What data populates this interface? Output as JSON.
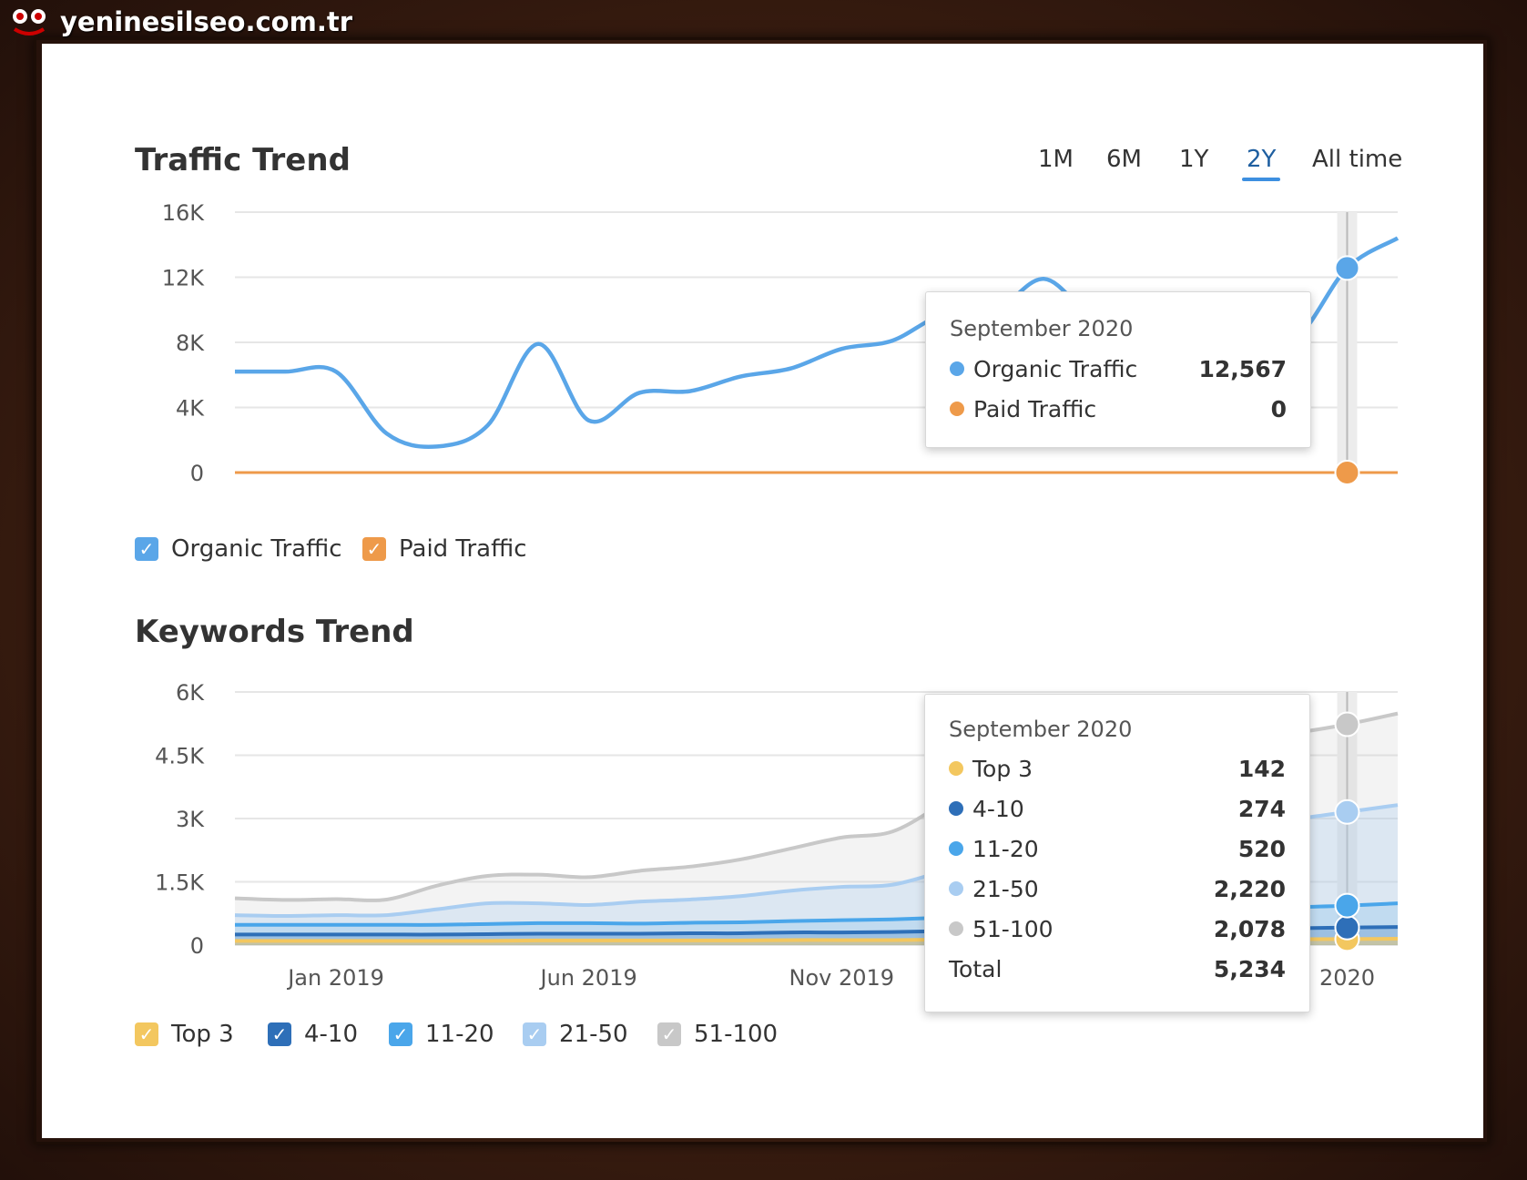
{
  "watermark": {
    "text": "yeninesilseo.com.tr"
  },
  "traffic": {
    "title": "Traffic Trend",
    "periods": [
      "1M",
      "6M",
      "1Y",
      "2Y",
      "All time"
    ],
    "active_period": "2Y",
    "tooltip": {
      "title": "September 2020",
      "rows": [
        {
          "label": "Organic Traffic",
          "value": "12,567",
          "color": "#5aa6e8"
        },
        {
          "label": "Paid Traffic",
          "value": "0",
          "color": "#ee9a4a"
        }
      ]
    },
    "legend": [
      {
        "label": "Organic Traffic",
        "color": "#5aa6e8",
        "checked": true
      },
      {
        "label": "Paid Traffic",
        "color": "#ee9a4a",
        "checked": true
      }
    ]
  },
  "keywords": {
    "title": "Keywords Trend",
    "tooltip": {
      "title": "September 2020",
      "rows": [
        {
          "label": "Top 3",
          "value": "142",
          "color": "#f3c75f"
        },
        {
          "label": "4-10",
          "value": "274",
          "color": "#2e6fb8"
        },
        {
          "label": "11-20",
          "value": "520",
          "color": "#4aa6ea"
        },
        {
          "label": "21-50",
          "value": "2,220",
          "color": "#a9cdf1"
        },
        {
          "label": "51-100",
          "value": "2,078",
          "color": "#c8c8c8"
        }
      ],
      "total_label": "Total",
      "total_value": "5,234"
    },
    "legend": [
      {
        "label": "Top 3",
        "color": "#f3c75f",
        "checked": true
      },
      {
        "label": "4-10",
        "color": "#2e6fb8",
        "checked": true
      },
      {
        "label": "11-20",
        "color": "#4aa6ea",
        "checked": true
      },
      {
        "label": "21-50",
        "color": "#a9cdf1",
        "checked": true
      },
      {
        "label": "51-100",
        "color": "#c8c8c8",
        "checked": true
      }
    ]
  },
  "chart_data": [
    {
      "type": "line",
      "title": "Traffic Trend",
      "ylim": [
        0,
        16000
      ],
      "y_ticks": [
        "16K",
        "12K",
        "8K",
        "4K",
        "0"
      ],
      "y_tick_values": [
        16000,
        12000,
        8000,
        4000,
        0
      ],
      "grid": true,
      "legend_position": "bottom-left",
      "highlight_index": 22,
      "series": [
        {
          "name": "Organic Traffic",
          "color": "#5aa6e8",
          "values": [
            6200,
            6200,
            6200,
            2400,
            1600,
            2900,
            7900,
            3200,
            4900,
            5000,
            5900,
            6400,
            7600,
            8100,
            9700,
            9800,
            11900,
            9500,
            9400,
            9000,
            8200,
            8300,
            12567,
            14400
          ]
        },
        {
          "name": "Paid Traffic",
          "color": "#ee9a4a",
          "values": [
            0,
            0,
            0,
            0,
            0,
            0,
            0,
            0,
            0,
            0,
            0,
            0,
            0,
            0,
            0,
            0,
            0,
            0,
            0,
            0,
            0,
            0,
            0,
            0
          ]
        }
      ]
    },
    {
      "type": "area",
      "title": "Keywords Trend",
      "ylim": [
        0,
        6000
      ],
      "y_ticks": [
        "6K",
        "4.5K",
        "3K",
        "1.5K",
        "0"
      ],
      "y_tick_values": [
        6000,
        4500,
        3000,
        1500,
        0
      ],
      "x_ticks": [
        "Jan 2019",
        "Jun 2019",
        "Nov 2019",
        "2020"
      ],
      "x_tick_indices": [
        2,
        7,
        12,
        22
      ],
      "grid": true,
      "legend_position": "bottom-left",
      "highlight_index": 22,
      "stacked_order": [
        "Top 3",
        "4-10",
        "11-20",
        "21-50",
        "51-100"
      ],
      "series": [
        {
          "name": "Top 3",
          "color": "#f3c75f",
          "values": [
            100,
            100,
            100,
            100,
            100,
            100,
            110,
            110,
            110,
            110,
            110,
            120,
            120,
            120,
            130,
            130,
            140,
            140,
            140,
            140,
            140,
            140,
            142,
            150
          ]
        },
        {
          "name": "4-10",
          "color": "#2e6fb8",
          "values": [
            150,
            150,
            150,
            150,
            150,
            160,
            160,
            160,
            160,
            170,
            170,
            180,
            180,
            190,
            200,
            210,
            220,
            230,
            240,
            250,
            260,
            260,
            274,
            280
          ]
        },
        {
          "name": "11-20",
          "color": "#4aa6ea",
          "values": [
            230,
            230,
            230,
            230,
            230,
            240,
            250,
            250,
            240,
            250,
            260,
            270,
            290,
            300,
            320,
            360,
            400,
            430,
            460,
            480,
            490,
            500,
            520,
            560
          ]
        },
        {
          "name": "21-50",
          "color": "#a9cdf1",
          "values": [
            230,
            210,
            230,
            230,
            370,
            490,
            470,
            430,
            520,
            550,
            620,
            720,
            790,
            820,
            1100,
            1400,
            1750,
            1800,
            1900,
            2000,
            2050,
            2100,
            2220,
            2330
          ]
        },
        {
          "name": "51-100",
          "color": "#c8c8c8",
          "values": [
            400,
            380,
            380,
            370,
            560,
            650,
            680,
            660,
            730,
            780,
            870,
            1000,
            1170,
            1260,
            1600,
            1950,
            2000,
            2000,
            2000,
            2000,
            2010,
            2040,
            2078,
            2170
          ]
        }
      ]
    }
  ]
}
